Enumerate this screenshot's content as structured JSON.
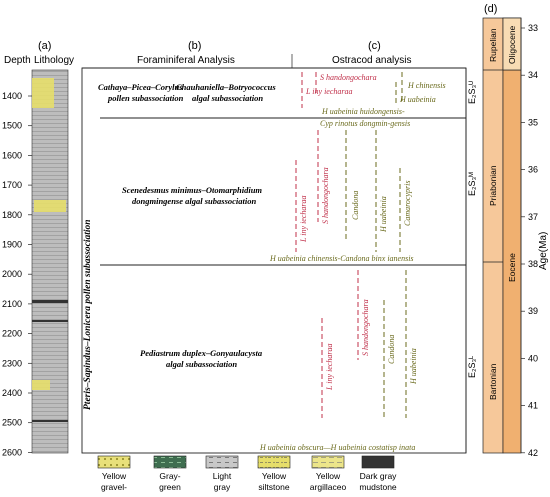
{
  "panels": {
    "a": "(a)",
    "b": "(b)",
    "c": "(c)",
    "d": "(d)"
  },
  "headers": {
    "depth": "Depth",
    "lithology": "Lithology",
    "foram": "Foraminiferal Analysis",
    "ostracod": "Ostracod analysis",
    "age": "Age(Ma)"
  },
  "depth_ticks": [
    "1400",
    "1500",
    "1600",
    "1700",
    "1800",
    "1900",
    "2000",
    "2100",
    "2200",
    "2300",
    "2400",
    "2500",
    "2600"
  ],
  "age_ticks": [
    "33",
    "34",
    "35",
    "36",
    "37",
    "38",
    "39",
    "40",
    "41",
    "42"
  ],
  "pollen_vertical": "Pteris–Sapindus–Lonicera pollen subassociation",
  "pollen_top_line1": "Cathaya–Picea–Corylus",
  "pollen_top_line2": "pollen subassociation",
  "algal_top_line1": "Chauhaniella–Botryococcus",
  "algal_top_line2": "algal subassociation",
  "algal_mid_line1": "Scenedesmus minimus–Otomarphidium",
  "algal_mid_line2": "dongmingense algal subassociation",
  "algal_bot_line1": "Pediastrum duplex–Gonyaulacysta",
  "algal_bot_line2": "algal subassociation",
  "ostracod_zones": {
    "z1": "H uabeinia huidongensis-",
    "z1b": "Cyp rinotus dongmin-gensis",
    "z2": "H uabeinia chinensis-Candona binx ianensis",
    "z3": "H uabeinia obscura—H uabeinia costatisp inata"
  },
  "taxa_top": {
    "s_hand": "S handongochara",
    "l_iny": "L iny iecharaa",
    "h_chin": "H  chinensis",
    "h_uab": "H uabeinia"
  },
  "taxa_mid": {
    "l_iny": "L iny iecharaa",
    "s_hand": "S handongochara",
    "candona": "Candona",
    "h_uab": "H uabeinia",
    "camar": "Camarocypris"
  },
  "taxa_bot": {
    "l_iny": "L iny iecharaa",
    "s_hand": "S handongochara",
    "candona": "Candona",
    "h_uab": "H uabeinia"
  },
  "stages": {
    "rupelian": "Rupelian",
    "priabonian": "Priabonian",
    "bartonian": "Bartonian",
    "oligocene": "Oligocene",
    "eocene": "Eocene"
  },
  "member_labels": {
    "top": "E₂S₃ᵁ",
    "mid": "E₂S₃ᴹ",
    "bot": "E₂S₃ᴸ"
  },
  "legend": [
    {
      "label1": "Yellow",
      "label2": "gravel-",
      "color": "#e8e07a"
    },
    {
      "label1": "Gray-",
      "label2": "green",
      "color": "#3f6e50"
    },
    {
      "label1": "Light",
      "label2": "gray",
      "color": "#c8c8c8"
    },
    {
      "label1": "Yellow",
      "label2": "siltstone",
      "color": "#e6de6a"
    },
    {
      "label1": "Yellow",
      "label2": "argillaceo",
      "color": "#ece58a"
    },
    {
      "label1": "Dark gray",
      "label2": "mudstone",
      "color": "#3a3a3a"
    }
  ],
  "colors": {
    "red_taxa": "#c0304a",
    "green_taxa": "#6b6b1e",
    "orange": "#f6c89a",
    "orange_dark": "#f0b070"
  }
}
